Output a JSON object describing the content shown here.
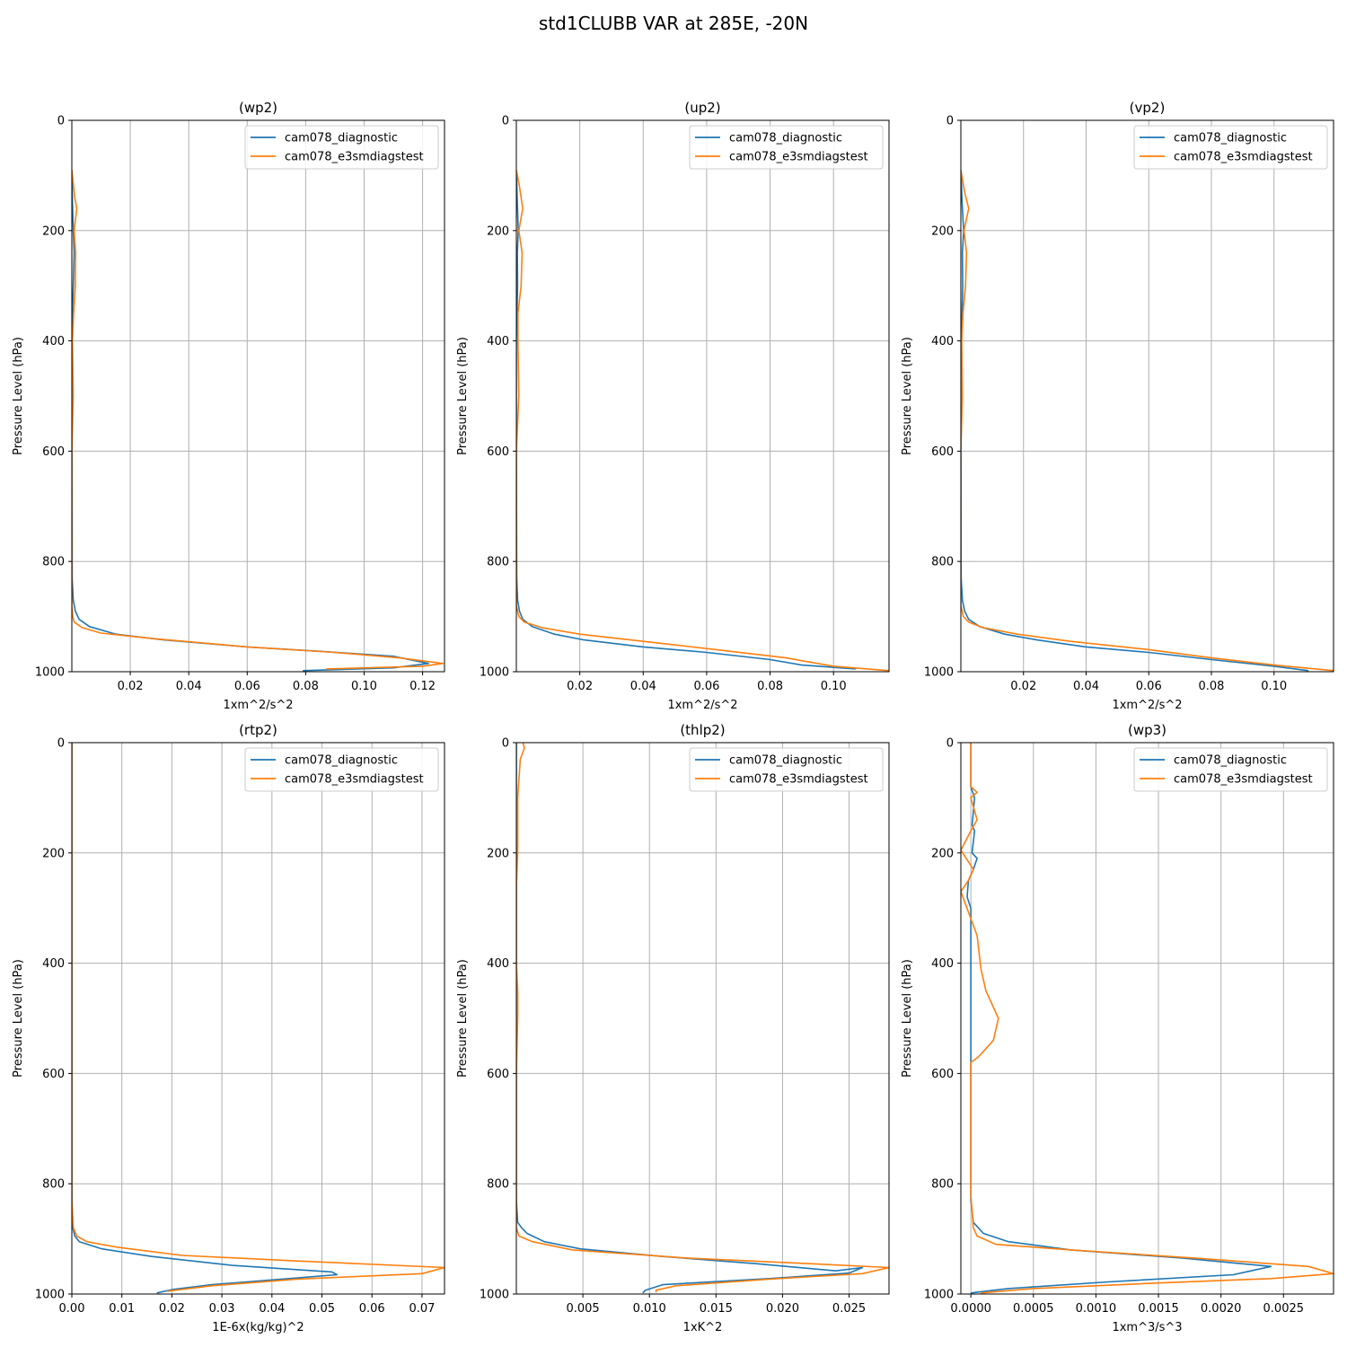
{
  "figure": {
    "title": "std1CLUBB VAR at 285E, -20N"
  },
  "colors": {
    "series1": "#1f77b4",
    "series2": "#ff7f0e",
    "grid": "#b0b0b0"
  },
  "chart_data": [
    {
      "type": "line",
      "title": "(wp2)",
      "xlabel": "1xm^2/s^2",
      "ylabel": "Pressure Level (hPa)",
      "xlim": [
        0.0,
        0.1275
      ],
      "ylim": [
        1000,
        0
      ],
      "y_inverted": true,
      "grid": true,
      "legend": "top-right",
      "xticks": [
        0.02,
        0.04,
        0.06,
        0.08,
        0.1,
        0.12
      ],
      "xtick_labels": [
        "0.02",
        "0.04",
        "0.06",
        "0.08",
        "0.10",
        "0.12"
      ],
      "yticks": [
        0,
        200,
        400,
        600,
        800,
        1000
      ],
      "ytick_labels": [
        "0",
        "200",
        "400",
        "600",
        "800",
        "1000"
      ],
      "series": [
        {
          "name": "cam078_diagnostic",
          "x": [
            0.0,
            0.0002,
            0.0005,
            0.0008,
            0.0005,
            0.0002,
            0.0,
            0.0,
            0.0001,
            0.0005,
            0.0012,
            0.0025,
            0.006,
            0.015,
            0.031,
            0.06,
            0.085,
            0.11,
            0.122,
            0.11,
            0.079
          ],
          "y": [
            90,
            150,
            200,
            240,
            300,
            350,
            450,
            600,
            830,
            870,
            890,
            905,
            918,
            932,
            942,
            955,
            963,
            972,
            985,
            993,
            998
          ]
        },
        {
          "name": "cam078_e3smdiagstest",
          "x": [
            0.0,
            0.001,
            0.0017,
            0.0008,
            0.0013,
            0.0012,
            0.0006,
            0.0002,
            0.0005,
            0.0,
            0.0,
            0.0,
            0.0003,
            0.0008,
            0.0035,
            0.01,
            0.028,
            0.06,
            0.09,
            0.112,
            0.127,
            0.12,
            0.087
          ],
          "y": [
            90,
            140,
            160,
            200,
            240,
            300,
            350,
            400,
            500,
            600,
            830,
            880,
            900,
            910,
            920,
            930,
            940,
            955,
            965,
            975,
            985,
            990,
            995
          ]
        }
      ]
    },
    {
      "type": "line",
      "title": "(up2)",
      "xlabel": "1xm^2/s^2",
      "ylabel": "Pressure Level (hPa)",
      "xlim": [
        0.0,
        0.1175
      ],
      "ylim": [
        1000,
        0
      ],
      "y_inverted": true,
      "grid": true,
      "legend": "top-right",
      "xticks": [
        0.02,
        0.04,
        0.06,
        0.08,
        0.1
      ],
      "xtick_labels": [
        "0.02",
        "0.04",
        "0.06",
        "0.08",
        "0.10"
      ],
      "yticks": [
        0,
        200,
        400,
        600,
        800,
        1000
      ],
      "ytick_labels": [
        "0",
        "200",
        "400",
        "600",
        "800",
        "1000"
      ],
      "series": [
        {
          "name": "cam078_diagnostic",
          "x": [
            0.0,
            0.0003,
            0.0006,
            0.0003,
            0.0004,
            0.0002,
            0.0,
            0.0,
            0.0001,
            0.0004,
            0.001,
            0.002,
            0.005,
            0.012,
            0.021,
            0.04,
            0.06,
            0.08,
            0.09,
            0.107
          ],
          "y": [
            90,
            150,
            200,
            240,
            300,
            350,
            400,
            600,
            830,
            870,
            890,
            905,
            918,
            932,
            942,
            955,
            965,
            978,
            988,
            995
          ]
        },
        {
          "name": "cam078_e3smdiagstest",
          "x": [
            0.0,
            0.001,
            0.002,
            0.0008,
            0.0018,
            0.0015,
            0.0005,
            0.0005,
            0.0008,
            0.0,
            0.0,
            0.0,
            0.0008,
            0.0025,
            0.008,
            0.02,
            0.04,
            0.063,
            0.085,
            0.1,
            0.1175
          ],
          "y": [
            90,
            120,
            160,
            200,
            240,
            300,
            350,
            400,
            500,
            600,
            820,
            880,
            900,
            910,
            920,
            932,
            945,
            960,
            975,
            990,
            998
          ]
        }
      ]
    },
    {
      "type": "line",
      "title": "(vp2)",
      "xlabel": "1xm^2/s^2",
      "ylabel": "Pressure Level (hPa)",
      "xlim": [
        0.0,
        0.119
      ],
      "ylim": [
        1000,
        0
      ],
      "y_inverted": true,
      "grid": true,
      "legend": "top-right",
      "xticks": [
        0.02,
        0.04,
        0.06,
        0.08,
        0.1
      ],
      "xtick_labels": [
        "0.02",
        "0.04",
        "0.06",
        "0.08",
        "0.10"
      ],
      "yticks": [
        0,
        200,
        400,
        600,
        800,
        1000
      ],
      "ytick_labels": [
        "0",
        "200",
        "400",
        "600",
        "800",
        "1000"
      ],
      "series": [
        {
          "name": "cam078_diagnostic",
          "x": [
            0.0,
            0.0004,
            0.0009,
            0.0005,
            0.0006,
            0.0004,
            0.0,
            0.0,
            0.0001,
            0.0005,
            0.0012,
            0.0025,
            0.006,
            0.014,
            0.024,
            0.04,
            0.06,
            0.08,
            0.1,
            0.111
          ],
          "y": [
            90,
            150,
            200,
            240,
            300,
            350,
            400,
            600,
            830,
            870,
            890,
            905,
            918,
            932,
            942,
            955,
            965,
            978,
            990,
            998
          ]
        },
        {
          "name": "cam078_e3smdiagstest",
          "x": [
            0.0,
            0.0012,
            0.0025,
            0.001,
            0.0018,
            0.0015,
            0.0007,
            0.0003,
            0.0005,
            0.0,
            0.0,
            0.0,
            0.0008,
            0.0025,
            0.007,
            0.018,
            0.035,
            0.06,
            0.08,
            0.1,
            0.119
          ],
          "y": [
            90,
            130,
            160,
            200,
            240,
            300,
            350,
            400,
            500,
            600,
            820,
            880,
            900,
            910,
            920,
            932,
            945,
            960,
            975,
            988,
            998
          ]
        }
      ]
    },
    {
      "type": "line",
      "title": "(rtp2)",
      "xlabel": "1E-6x(kg/kg)^2",
      "ylabel": "Pressure Level (hPa)",
      "xlim": [
        0.0,
        0.0745
      ],
      "ylim": [
        1000,
        0
      ],
      "y_inverted": true,
      "grid": true,
      "legend": "top-right",
      "xticks": [
        0.0,
        0.01,
        0.02,
        0.03,
        0.04,
        0.05,
        0.06,
        0.07
      ],
      "xtick_labels": [
        "0.00",
        "0.01",
        "0.02",
        "0.03",
        "0.04",
        "0.05",
        "0.06",
        "0.07"
      ],
      "yticks": [
        0,
        200,
        400,
        600,
        800,
        1000
      ],
      "ytick_labels": [
        "0",
        "200",
        "400",
        "600",
        "800",
        "1000"
      ],
      "series": [
        {
          "name": "cam078_diagnostic",
          "x": [
            0.0,
            0.0,
            0.0002,
            0.0006,
            0.0015,
            0.006,
            0.016,
            0.032,
            0.052,
            0.053,
            0.042,
            0.028,
            0.02,
            0.017
          ],
          "y": [
            0,
            830,
            880,
            895,
            905,
            918,
            932,
            948,
            960,
            965,
            973,
            983,
            992,
            998
          ]
        },
        {
          "name": "cam078_e3smdiagstest",
          "x": [
            0.0,
            0.0,
            0.0003,
            0.001,
            0.003,
            0.009,
            0.022,
            0.045,
            0.0745,
            0.07,
            0.045,
            0.028,
            0.019
          ],
          "y": [
            0,
            830,
            880,
            895,
            905,
            915,
            930,
            940,
            952,
            963,
            973,
            985,
            995
          ]
        }
      ]
    },
    {
      "type": "line",
      "title": "(thlp2)",
      "xlabel": "1xK^2",
      "ylabel": "Pressure Level (hPa)",
      "xlim": [
        0.0,
        0.028
      ],
      "ylim": [
        1000,
        0
      ],
      "y_inverted": true,
      "grid": true,
      "legend": "top-right",
      "xticks": [
        0.005,
        0.01,
        0.015,
        0.02,
        0.025
      ],
      "xtick_labels": [
        "0.005",
        "0.010",
        "0.015",
        "0.020",
        "0.025"
      ],
      "yticks": [
        0,
        200,
        400,
        600,
        800,
        1000
      ],
      "ytick_labels": [
        "0",
        "200",
        "400",
        "600",
        "800",
        "1000"
      ],
      "series": [
        {
          "name": "cam078_diagnostic",
          "x": [
            0.0,
            0.0,
            0.0001,
            0.0004,
            0.0008,
            0.0021,
            0.0048,
            0.011,
            0.018,
            0.024,
            0.026,
            0.025,
            0.019,
            0.011,
            0.0097,
            0.0095
          ],
          "y": [
            0,
            830,
            870,
            880,
            890,
            905,
            918,
            932,
            945,
            958,
            952,
            962,
            972,
            983,
            993,
            998
          ]
        },
        {
          "name": "cam078_e3smdiagstest",
          "x": [
            0.0005,
            0.0006,
            0.0003,
            0.0001,
            0.0001,
            0.0,
            0.0,
            0.0001,
            0.0001,
            0.0,
            0.0,
            0.0002,
            0.0012,
            0.0042,
            0.013,
            0.022,
            0.028,
            0.026,
            0.019,
            0.012,
            0.0105,
            0.0105
          ],
          "y": [
            0,
            10,
            30,
            100,
            200,
            260,
            400,
            450,
            500,
            600,
            880,
            895,
            905,
            920,
            935,
            945,
            952,
            963,
            973,
            985,
            993,
            997
          ]
        }
      ]
    },
    {
      "type": "line",
      "title": "(wp3)",
      "xlabel": "1xm^3/s^3",
      "ylabel": "Pressure Level (hPa)",
      "xlim": [
        -8e-05,
        0.0029
      ],
      "ylim": [
        1000,
        0
      ],
      "y_inverted": true,
      "grid": true,
      "legend": "top-right",
      "xticks": [
        0.0,
        0.0005,
        0.001,
        0.0015,
        0.002,
        0.0025
      ],
      "xtick_labels": [
        "0.0000",
        "0.0005",
        "0.0010",
        "0.0015",
        "0.0020",
        "0.0025"
      ],
      "yticks": [
        0,
        200,
        400,
        600,
        800,
        1000
      ],
      "ytick_labels": [
        "0",
        "200",
        "400",
        "600",
        "800",
        "1000"
      ],
      "series": [
        {
          "name": "cam078_diagnostic",
          "x": [
            0.0,
            0.0,
            3e-05,
            1e-05,
            3e-05,
            1e-05,
            5e-05,
            2e-05,
            -2e-05,
            -3e-05,
            0.0,
            0.0,
            0.0,
            0.0,
            0.0,
            2e-05,
            0.0001,
            0.0003,
            0.0008,
            0.0017,
            0.0024,
            0.0021,
            0.0011,
            0.0003,
            0.0
          ],
          "y": [
            0,
            80,
            100,
            150,
            160,
            200,
            210,
            230,
            250,
            280,
            300,
            350,
            400,
            600,
            830,
            870,
            890,
            905,
            920,
            935,
            950,
            965,
            978,
            990,
            998
          ]
        },
        {
          "name": "cam078_e3smdiagstest",
          "x": [
            0.0,
            0.0,
            5e-05,
            0.0,
            5e-05,
            0.0,
            -8e-05,
            2e-05,
            -2e-05,
            -8e-05,
            5e-05,
            8e-05,
            0.00012,
            0.00022,
            0.00018,
            6e-05,
            0.0,
            0.0,
            0.0,
            2e-05,
            5e-05,
            0.0002,
            0.0008,
            0.0018,
            0.0027,
            0.0029,
            0.0024,
            0.0015,
            0.0005,
            8e-05
          ],
          "y": [
            0,
            80,
            90,
            100,
            140,
            160,
            195,
            230,
            250,
            270,
            350,
            410,
            450,
            500,
            540,
            570,
            580,
            600,
            820,
            880,
            895,
            910,
            920,
            935,
            950,
            963,
            972,
            980,
            990,
            998
          ]
        }
      ]
    }
  ]
}
